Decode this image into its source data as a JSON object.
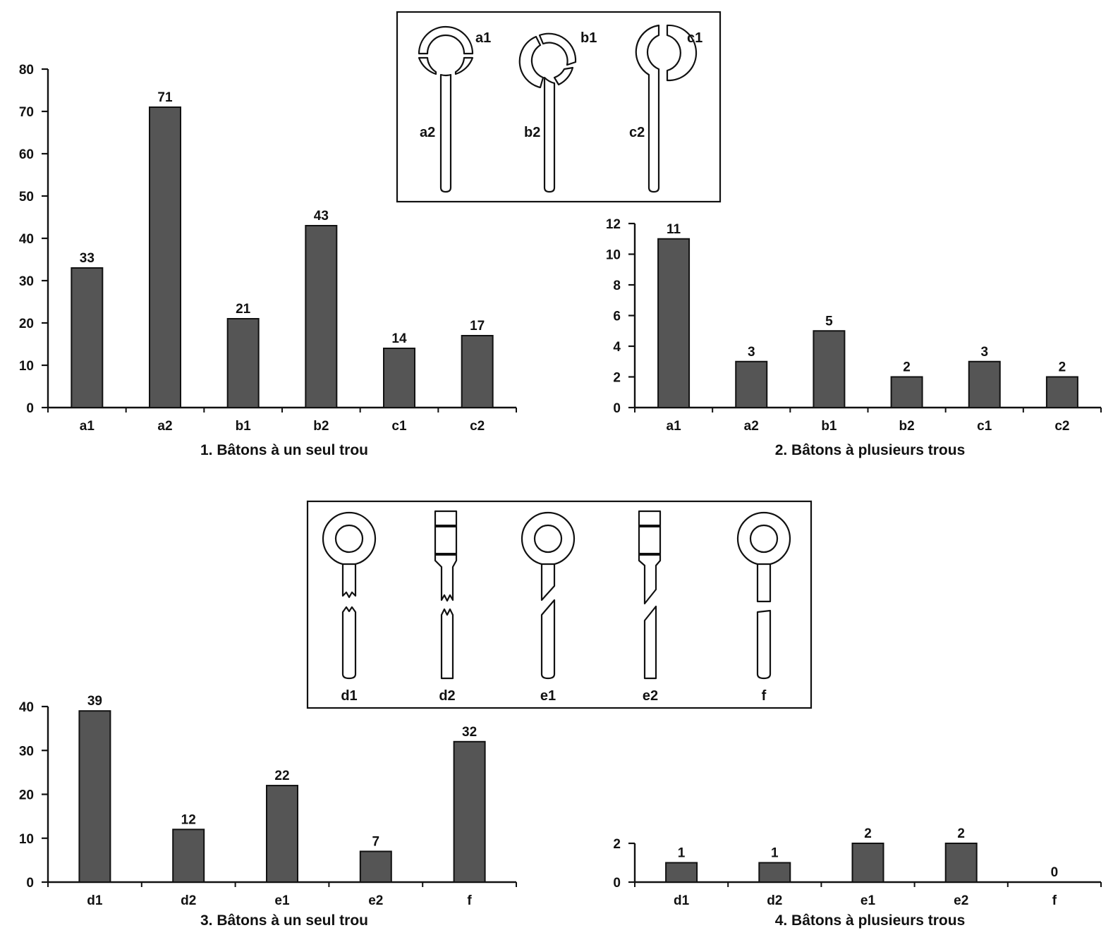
{
  "chart_data": [
    {
      "type": "bar",
      "title": "1. Bâtons à un seul trou",
      "categories": [
        "a1",
        "a2",
        "b1",
        "b2",
        "c1",
        "c2"
      ],
      "values": [
        33,
        71,
        21,
        43,
        14,
        17
      ],
      "data_labels": [
        "33",
        "71",
        "21",
        "43",
        "14",
        "17"
      ],
      "ylim": [
        0,
        80
      ],
      "yticks": [
        "0",
        "10",
        "20",
        "30",
        "40",
        "50",
        "60",
        "70",
        "80"
      ],
      "grid": false,
      "bar_color": "#555555"
    },
    {
      "type": "bar",
      "title": "2. Bâtons à plusieurs trous",
      "categories": [
        "a1",
        "a2",
        "b1",
        "b2",
        "c1",
        "c2"
      ],
      "values": [
        11,
        3,
        5,
        2,
        3,
        2
      ],
      "data_labels": [
        "11",
        "3",
        "5",
        "2",
        "3",
        "2"
      ],
      "ylim": [
        0,
        12
      ],
      "yticks": [
        "0",
        "2",
        "4",
        "6",
        "8",
        "10",
        "12"
      ],
      "grid": false,
      "bar_color": "#555555"
    },
    {
      "type": "bar",
      "title": "3. Bâtons à un seul trou",
      "categories": [
        "d1",
        "d2",
        "e1",
        "e2",
        "f"
      ],
      "values": [
        39,
        12,
        22,
        7,
        32
      ],
      "data_labels": [
        "39",
        "12",
        "22",
        "7",
        "32"
      ],
      "ylim": [
        0,
        40
      ],
      "yticks": [
        "0",
        "10",
        "20",
        "30",
        "40"
      ],
      "grid": false,
      "bar_color": "#555555"
    },
    {
      "type": "bar",
      "title": "4. Bâtons à plusieurs trous",
      "categories": [
        "d1",
        "d2",
        "e1",
        "e2",
        "f"
      ],
      "values": [
        1,
        1,
        2,
        2,
        0
      ],
      "data_labels": [
        "1",
        "1",
        "2",
        "2",
        "0"
      ],
      "ylim": [
        0,
        2
      ],
      "yticks": [
        "0",
        "2"
      ],
      "grid": false,
      "bar_color": "#555555"
    }
  ],
  "legend_top": {
    "labels": [
      "a1",
      "a2",
      "b1",
      "b2",
      "c1",
      "c2"
    ]
  },
  "legend_bottom": {
    "labels": [
      "d1",
      "d2",
      "e1",
      "e2",
      "f"
    ]
  }
}
